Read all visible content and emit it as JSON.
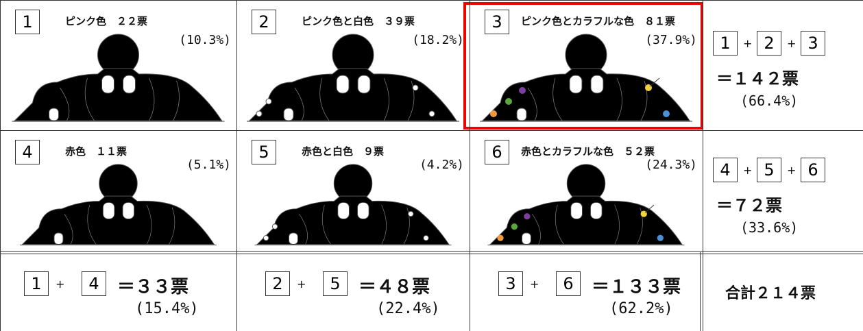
{
  "cells": [
    {
      "number": "1",
      "label": "ピンク色　２２票",
      "percent": "(10.3%)"
    },
    {
      "number": "2",
      "label": "ピンク色と白色　３９票",
      "percent": "(18.2%)"
    },
    {
      "number": "3",
      "label": "ピンク色とカラフルな色　８１票",
      "percent": "(37.9%)"
    },
    {
      "number": "4",
      "label": "赤色　１１票",
      "percent": "(5.1%)"
    },
    {
      "number": "5",
      "label": "赤色と白色　９票",
      "percent": "(4.2%)"
    },
    {
      "number": "6",
      "label": "赤色とカラフルな色　５２票",
      "percent": "(24.3%)"
    }
  ],
  "row_totals": [
    {
      "total": "＝１４２票",
      "percent": "(66.4%)"
    },
    {
      "total": "＝７２票",
      "percent": "(33.6%)"
    }
  ],
  "column_totals": [
    {
      "total": "＝３３票",
      "percent": "(15.4%)"
    },
    {
      "total": "＝４８票",
      "percent": "(22.4%)"
    },
    {
      "total": "＝１３３票",
      "percent": "(62.2%)"
    }
  ],
  "plus": "+",
  "grand_total": "合計２１４票"
}
